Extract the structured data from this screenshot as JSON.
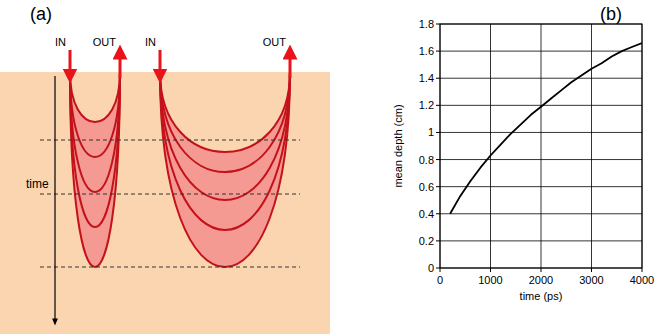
{
  "panel_labels": [
    "(a)",
    "(b)"
  ],
  "diagram": {
    "entries": [
      {
        "in": "IN",
        "out": "OUT"
      },
      {
        "in": "IN",
        "out": "OUT"
      }
    ],
    "time_label": "time"
  },
  "chart_data": {
    "type": "line",
    "x_label": "time (ps)",
    "y_label": "mean depth (cm)",
    "x": [
      200,
      400,
      600,
      800,
      1000,
      1200,
      1400,
      1600,
      1800,
      2000,
      2200,
      2400,
      2600,
      2800,
      3000,
      3200,
      3400,
      3600,
      3800,
      4000
    ],
    "values": [
      0.4,
      0.53,
      0.64,
      0.74,
      0.83,
      0.91,
      0.99,
      1.06,
      1.13,
      1.19,
      1.25,
      1.31,
      1.37,
      1.42,
      1.47,
      1.51,
      1.56,
      1.6,
      1.63,
      1.66
    ],
    "color": "#000000",
    "xlim": [
      0,
      4000
    ],
    "xticks": [
      0,
      1000,
      2000,
      3000,
      4000
    ],
    "ylim": [
      0,
      1.8
    ],
    "yticks": [
      0,
      0.2,
      0.4,
      0.6,
      0.8,
      1,
      1.2,
      1.4,
      1.6,
      1.8
    ],
    "grid": true
  }
}
